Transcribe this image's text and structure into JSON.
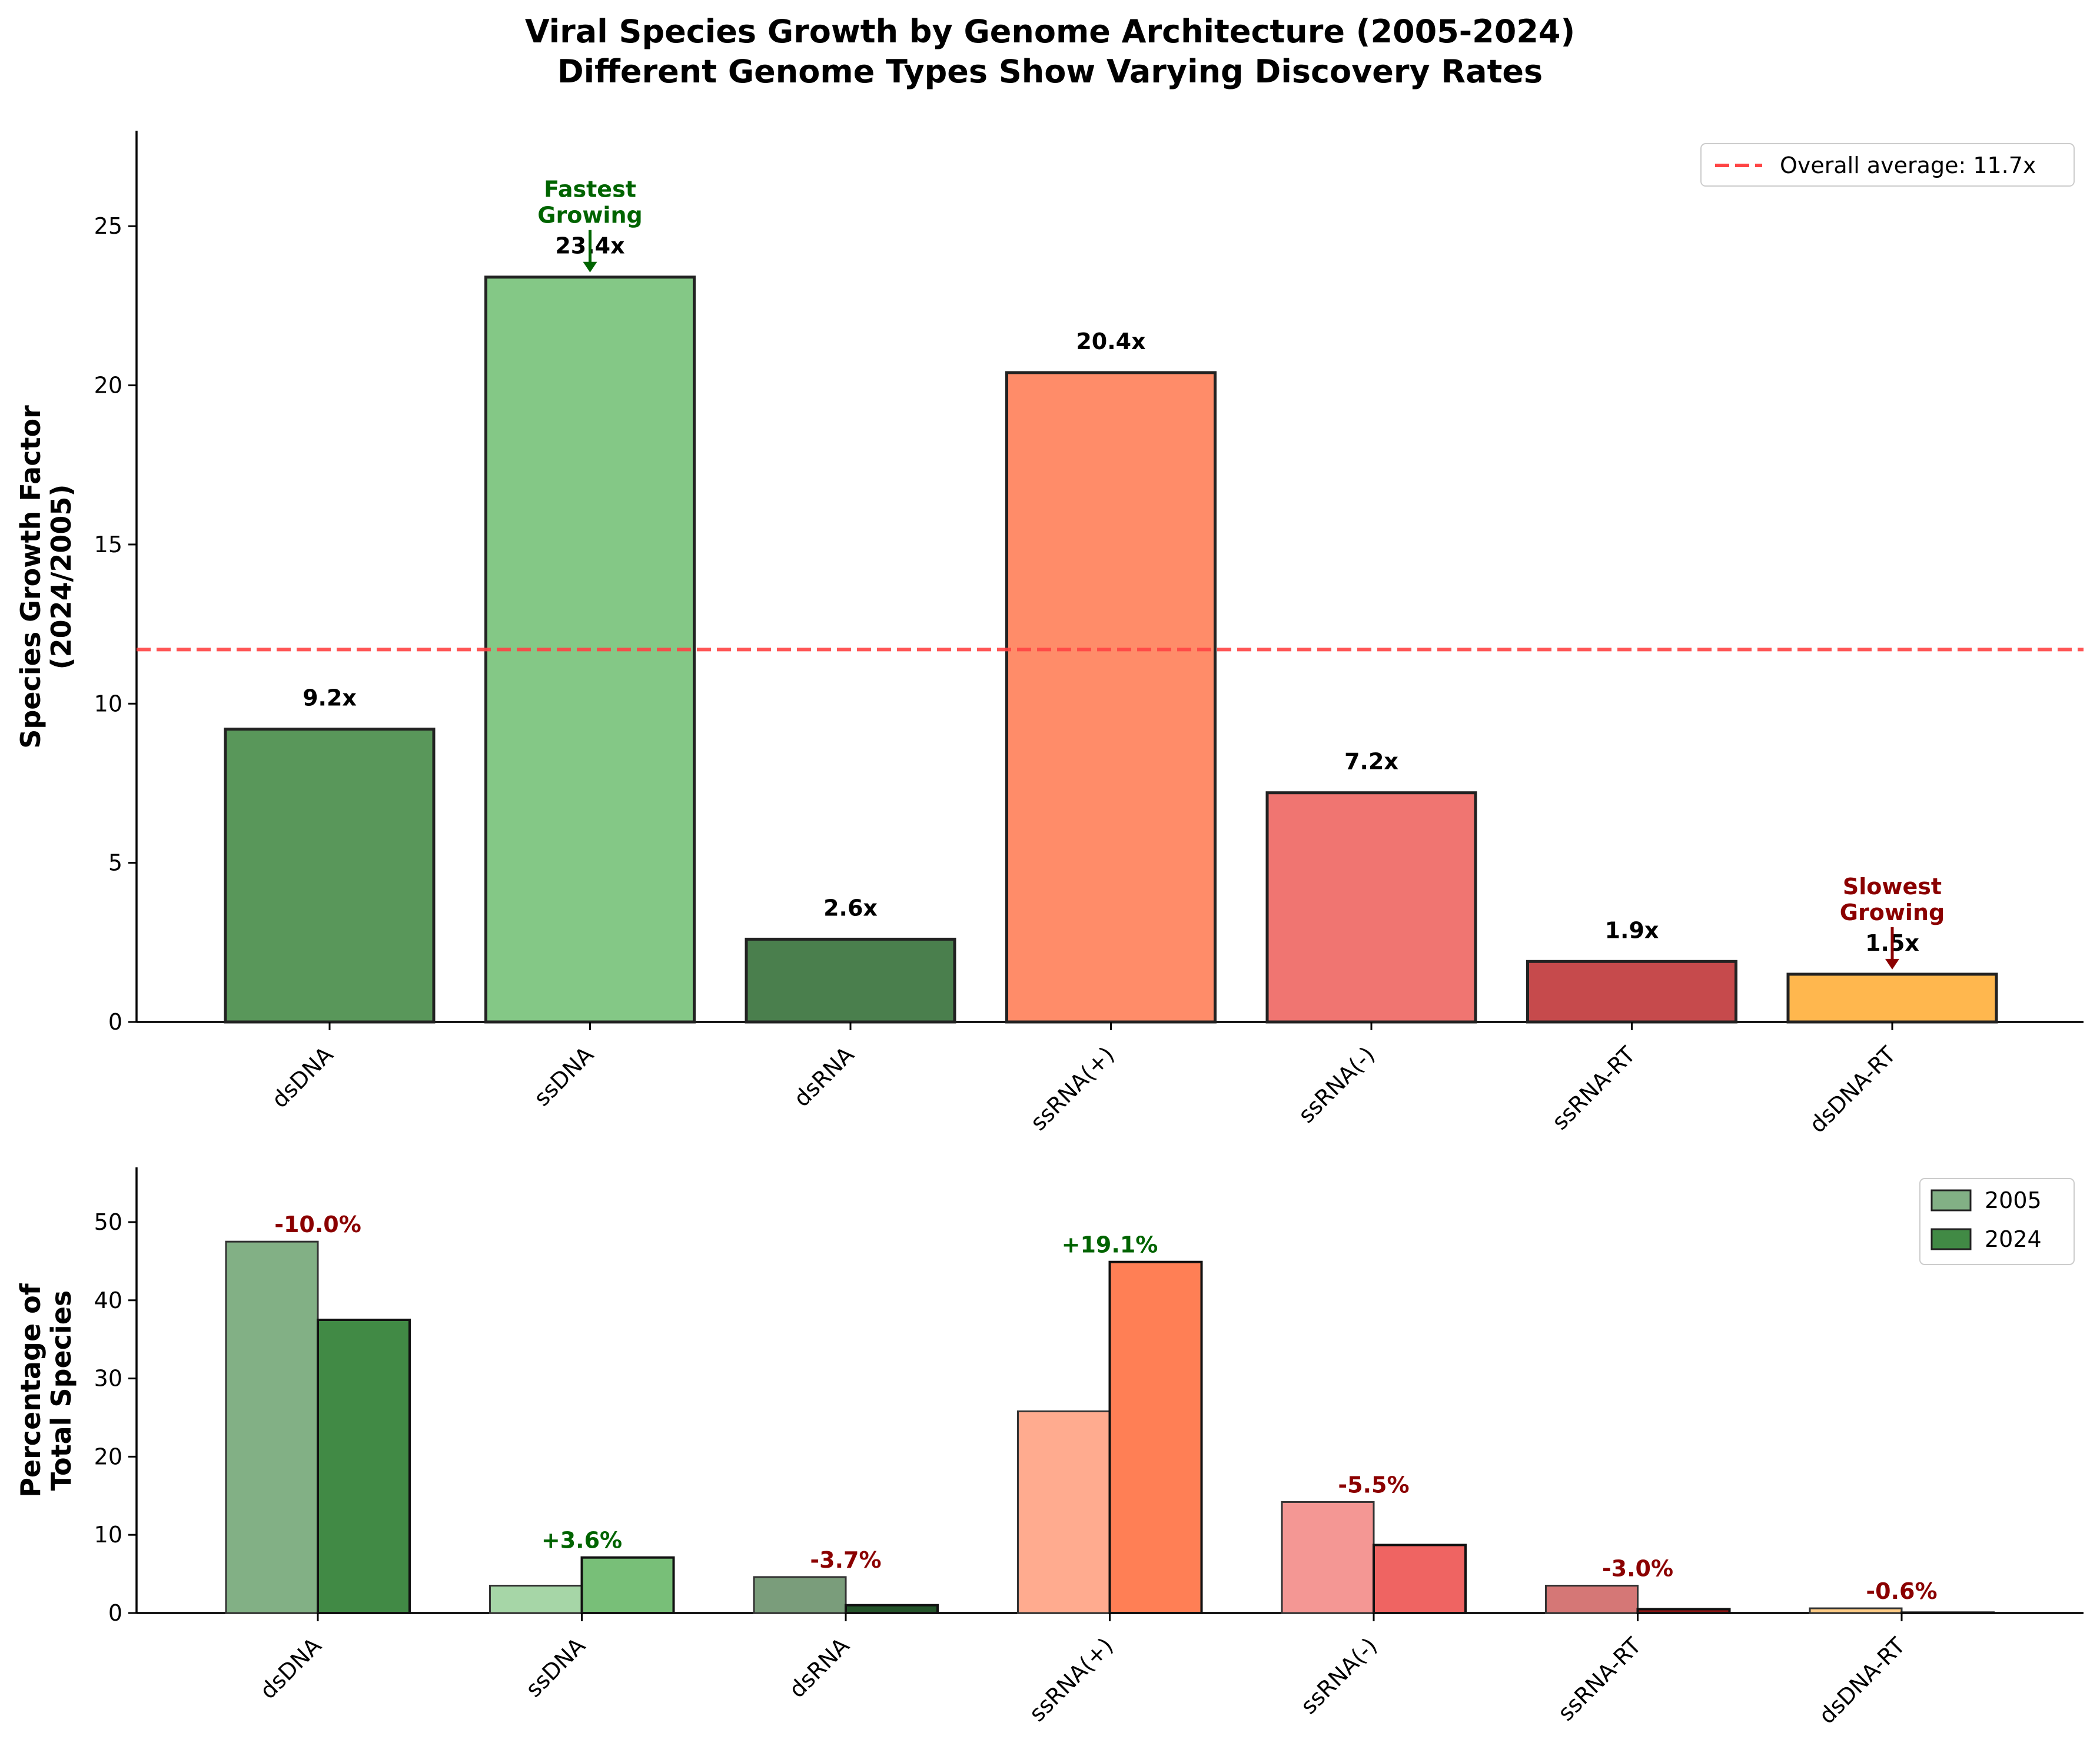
{
  "title_line1": "Viral Species Growth by Genome Architecture (2005-2024)",
  "title_line2": "Different Genome Types Show Varying Discovery Rates",
  "chart_data": [
    {
      "type": "bar",
      "categories": [
        "dsDNA",
        "ssDNA",
        "dsRNA",
        "ssRNA(+)",
        "ssRNA(-)",
        "ssRNA-RT",
        "dsDNA-RT"
      ],
      "values": [
        9.2,
        23.4,
        2.6,
        20.4,
        7.2,
        1.9,
        1.5
      ],
      "value_labels": [
        "9.2x",
        "23.4x",
        "2.6x",
        "20.4x",
        "7.2x",
        "1.9x",
        "1.5x"
      ],
      "colors": [
        "#59975a",
        "#84c886",
        "#4a7f4d",
        "#ff8c69",
        "#f07571",
        "#c64a4c",
        "#ffb74e"
      ],
      "ylabel_line1": "Species Growth Factor",
      "ylabel_line2": "(2024/2005)",
      "ylim": [
        0,
        28
      ],
      "yticks": [
        0,
        5,
        10,
        15,
        20,
        25
      ],
      "reference_line": {
        "value": 11.7,
        "label": "Overall average: 11.7x",
        "color": "#ff4444",
        "style": "dashed"
      },
      "annotations": [
        {
          "category": "ssDNA",
          "line1": "Fastest",
          "line2": "Growing",
          "color": "#006400"
        },
        {
          "category": "dsDNA-RT",
          "line1": "Slowest",
          "line2": "Growing",
          "color": "#8b0000"
        }
      ],
      "legend_position": "top-right"
    },
    {
      "type": "bar",
      "categories": [
        "dsDNA",
        "ssDNA",
        "dsRNA",
        "ssRNA(+)",
        "ssRNA(-)",
        "ssRNA-RT",
        "dsDNA-RT"
      ],
      "series": [
        {
          "name": "2005",
          "values": [
            47.5,
            3.5,
            4.6,
            25.8,
            14.2,
            3.5,
            0.6
          ],
          "colors": [
            "#82b085",
            "#a6d6a7",
            "#7a9d7b",
            "#ffab8f",
            "#f49794",
            "#d57776",
            "#ffcc86"
          ]
        },
        {
          "name": "2024",
          "values": [
            37.5,
            7.1,
            1.0,
            44.9,
            8.7,
            0.5,
            0.05
          ],
          "colors": [
            "#418a45",
            "#78bf78",
            "#24542a",
            "#ff7f55",
            "#ef6462",
            "#8b1515",
            "#d89434"
          ]
        }
      ],
      "change_labels": [
        "-10.0%",
        "+3.6%",
        "-3.7%",
        "+19.1%",
        "-5.5%",
        "-3.0%",
        "-0.6%"
      ],
      "positive_color": "#006400",
      "negative_color": "#8b0000",
      "ylabel_line1": "Percentage of",
      "ylabel_line2": "Total Species",
      "ylim": [
        0,
        57
      ],
      "yticks": [
        0,
        10,
        20,
        30,
        40,
        50
      ],
      "legend_colors": [
        "#82b085",
        "#418a45"
      ],
      "legend_position": "top-right"
    }
  ]
}
